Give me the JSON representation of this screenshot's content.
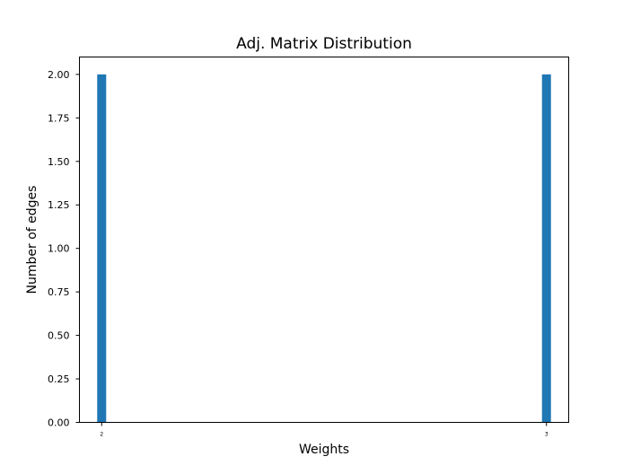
{
  "chart_data": {
    "type": "bar",
    "title": "Adj. Matrix Distribution",
    "xlabel": "Weights",
    "ylabel": "Number of edges",
    "bars": [
      {
        "x": 2,
        "value": 2.0
      },
      {
        "x": 3,
        "value": 2.0
      }
    ],
    "x_tick_labels": [
      "2",
      "3"
    ],
    "y_tick_labels": [
      "0.00",
      "0.25",
      "0.50",
      "0.75",
      "1.00",
      "1.25",
      "1.50",
      "1.75",
      "2.00"
    ],
    "ylim": [
      0,
      2.1
    ],
    "grid": false,
    "bar_color": "#1f77b4"
  }
}
